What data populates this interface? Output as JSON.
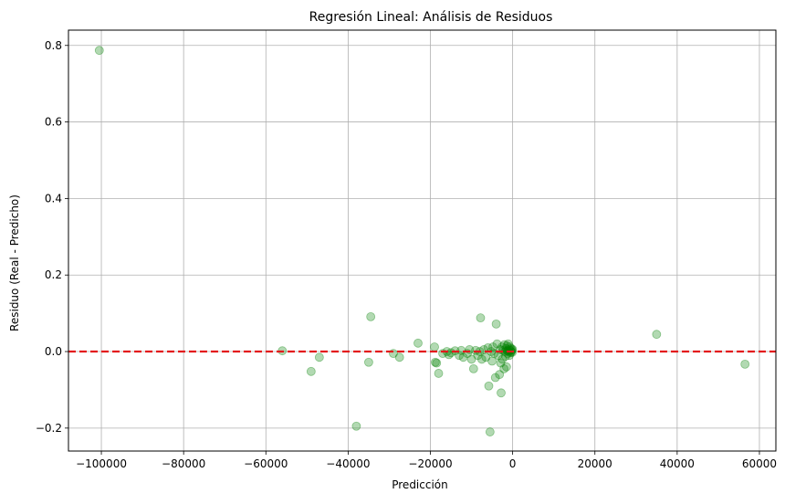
{
  "chart_data": {
    "type": "scatter",
    "title": "Regresión Lineal: Análisis de Residuos",
    "xlabel": "Predicción",
    "ylabel": "Residuo (Real - Predicho)",
    "xlim": [
      -108000,
      64000
    ],
    "ylim": [
      -0.26,
      0.84
    ],
    "xticks": [
      -100000,
      -80000,
      -60000,
      -40000,
      -20000,
      0,
      20000,
      40000,
      60000
    ],
    "xtick_labels": [
      "−100000",
      "−80000",
      "−60000",
      "−40000",
      "−20000",
      "0",
      "20000",
      "40000",
      "60000"
    ],
    "yticks": [
      -0.2,
      0.0,
      0.2,
      0.4,
      0.6,
      0.8
    ],
    "ytick_labels": [
      "−0.2",
      "0.0",
      "0.2",
      "0.4",
      "0.6",
      "0.8"
    ],
    "grid": true,
    "reference_line": {
      "y": 0,
      "style": "dashed",
      "color": "#e31a1c"
    },
    "marker_color": "#008000",
    "marker_alpha": 0.3,
    "points": [
      [
        -100500,
        0.787
      ],
      [
        -56000,
        0.002
      ],
      [
        -49000,
        -0.052
      ],
      [
        -47000,
        -0.015
      ],
      [
        -38000,
        -0.195
      ],
      [
        -35000,
        -0.028
      ],
      [
        -34500,
        0.091
      ],
      [
        -29000,
        -0.005
      ],
      [
        -27500,
        -0.015
      ],
      [
        -23000,
        0.022
      ],
      [
        -19000,
        0.012
      ],
      [
        -18800,
        -0.028
      ],
      [
        -18500,
        -0.03
      ],
      [
        -18000,
        -0.057
      ],
      [
        -17000,
        -0.005
      ],
      [
        -16000,
        0.0
      ],
      [
        -15500,
        -0.008
      ],
      [
        -15000,
        -0.003
      ],
      [
        -14000,
        0.002
      ],
      [
        -13000,
        -0.01
      ],
      [
        -12500,
        0.003
      ],
      [
        -12000,
        -0.015
      ],
      [
        -11000,
        -0.005
      ],
      [
        -10500,
        0.005
      ],
      [
        -10000,
        -0.02
      ],
      [
        -9500,
        -0.045
      ],
      [
        -9000,
        0.003
      ],
      [
        -8500,
        -0.01
      ],
      [
        -8000,
        0.0
      ],
      [
        -7800,
        0.088
      ],
      [
        -7500,
        -0.02
      ],
      [
        -7000,
        0.005
      ],
      [
        -6500,
        -0.015
      ],
      [
        -6000,
        0.01
      ],
      [
        -5800,
        -0.09
      ],
      [
        -5500,
        -0.21
      ],
      [
        -5200,
        0.0
      ],
      [
        -5000,
        -0.025
      ],
      [
        -4800,
        0.012
      ],
      [
        -4500,
        -0.005
      ],
      [
        -4200,
        -0.068
      ],
      [
        -4000,
        0.072
      ],
      [
        -3800,
        0.02
      ],
      [
        -3500,
        -0.01
      ],
      [
        -3200,
        -0.06
      ],
      [
        -3000,
        0.005
      ],
      [
        -2900,
        -0.03
      ],
      [
        -2800,
        -0.108
      ],
      [
        -2600,
        0.012
      ],
      [
        -2500,
        -0.02
      ],
      [
        -2300,
        0.003
      ],
      [
        -2100,
        -0.045
      ],
      [
        -2000,
        0.018
      ],
      [
        -1800,
        0.0
      ],
      [
        -1700,
        -0.012
      ],
      [
        -1600,
        0.008
      ],
      [
        -1500,
        -0.04
      ],
      [
        -1400,
        0.015
      ],
      [
        -1300,
        0.002
      ],
      [
        -1200,
        -0.005
      ],
      [
        -1100,
        0.02
      ],
      [
        -1000,
        0.0
      ],
      [
        -900,
        0.005
      ],
      [
        -800,
        -0.01
      ],
      [
        -700,
        0.012
      ],
      [
        -600,
        0.003
      ],
      [
        -500,
        -0.003
      ],
      [
        -400,
        0.008
      ],
      [
        -300,
        0.0
      ],
      [
        -200,
        0.004
      ],
      [
        -100,
        -0.002
      ],
      [
        -50,
        0.006
      ],
      [
        35000,
        0.045
      ],
      [
        56500,
        -0.033
      ]
    ]
  }
}
